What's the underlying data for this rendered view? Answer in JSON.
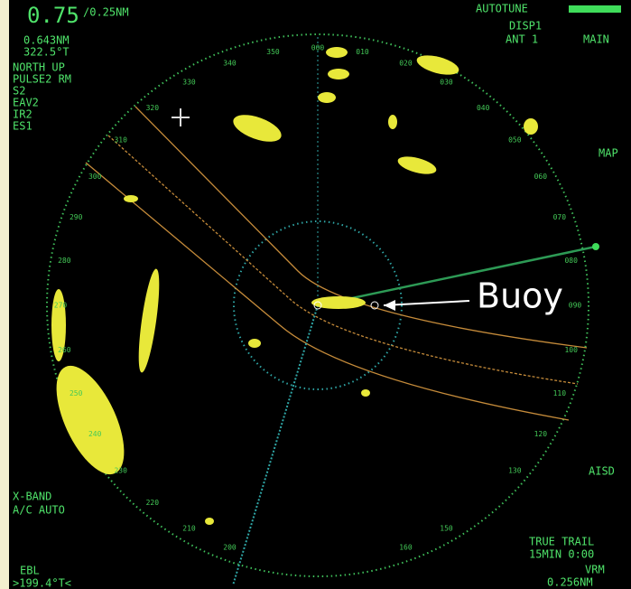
{
  "header": {
    "range": "0.75",
    "ring_interval": "/0.25NM",
    "cursor_range": "0.643NM",
    "cursor_bearing": "322.5°T",
    "mode": [
      "NORTH UP",
      "PULSE2 RM",
      "S2",
      "EAV2",
      "IR2",
      "ES1"
    ],
    "tune": [
      "AUTOTUNE",
      "DISP1",
      "ANT 1",
      "MAIN"
    ]
  },
  "side": {
    "map": "MAP",
    "aisd": "AISD"
  },
  "footer": {
    "band": "X-BAND",
    "ac": "A/C AUTO",
    "trail": "TRUE TRAIL",
    "trail_time": "15MIN 0:00",
    "vrm": "VRM",
    "vrm_value": "0.256NM",
    "ebl": "EBL",
    "ebl_value": ">199.4°T<"
  },
  "annotation": "Buoy",
  "bearings": [
    "000",
    "010",
    "020",
    "030",
    "040",
    "050",
    "060",
    "070",
    "080",
    "090",
    "100",
    "110",
    "120",
    "130",
    "150",
    "160",
    "200",
    "210",
    "220",
    "230",
    "240",
    "250",
    "260",
    "270",
    "280",
    "290",
    "300",
    "310",
    "320",
    "330",
    "340",
    "350"
  ]
}
